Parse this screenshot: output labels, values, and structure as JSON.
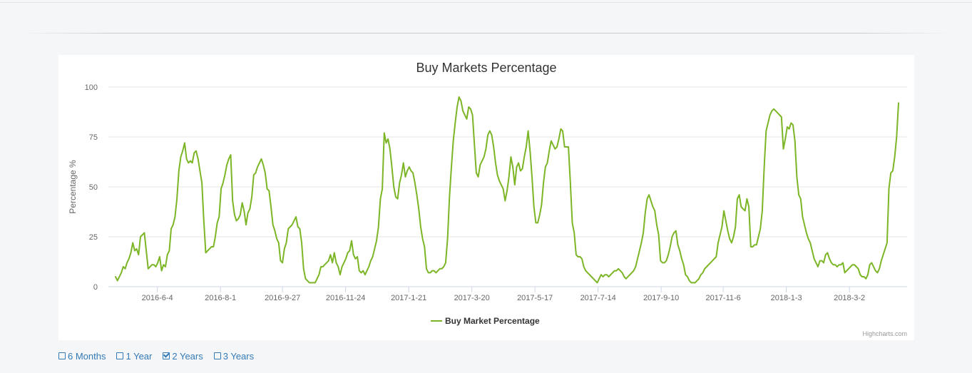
{
  "chart_data": {
    "type": "line",
    "title": "Buy Markets Percentage",
    "ylabel": "Percentage %",
    "xlabel": "",
    "ylim": [
      0,
      100
    ],
    "yticks": [
      "0",
      "25",
      "50",
      "75",
      "100"
    ],
    "xticks": [
      "2016-6-4",
      "2016-8-1",
      "2016-9-27",
      "2016-11-24",
      "2017-1-21",
      "2017-3-20",
      "2017-5-17",
      "2017-7-14",
      "2017-9-10",
      "2017-11-6",
      "2018-1-3",
      "2018-3-2"
    ],
    "x_start": "2016-4-20",
    "x_end": "2018-4-24",
    "grid": true,
    "legend_position": "bottom",
    "series": [
      {
        "name": "Buy Market Percentage",
        "color": "#7cb526",
        "values": [
          5,
          3,
          5,
          7,
          10,
          9,
          12,
          14,
          17,
          22,
          18,
          19,
          16,
          25,
          26,
          27,
          18,
          9,
          10,
          11,
          11,
          10,
          12,
          15,
          8,
          11,
          10,
          16,
          18,
          29,
          31,
          35,
          44,
          58,
          65,
          68,
          72,
          64,
          62,
          63,
          62,
          67,
          68,
          64,
          58,
          52,
          33,
          17,
          18,
          19,
          20,
          20,
          25,
          32,
          35,
          49,
          52,
          56,
          61,
          64,
          66,
          43,
          36,
          33,
          34,
          36,
          42,
          38,
          31,
          37,
          39,
          45,
          56,
          57,
          60,
          62,
          64,
          61,
          57,
          49,
          48,
          40,
          31,
          28,
          24,
          22,
          13,
          12,
          19,
          22,
          29,
          30,
          31,
          33,
          35,
          30,
          29,
          22,
          9,
          4,
          3,
          2,
          2,
          2,
          2,
          4,
          6,
          10,
          10,
          11,
          12,
          13,
          16,
          12,
          17,
          12,
          10,
          6,
          10,
          12,
          14,
          17,
          18,
          23,
          16,
          14,
          15,
          8,
          7,
          8,
          6,
          8,
          10,
          13,
          15,
          19,
          23,
          30,
          44,
          49,
          77,
          72,
          74,
          69,
          60,
          50,
          45,
          44,
          52,
          56,
          62,
          55,
          58,
          60,
          58,
          57,
          52,
          46,
          39,
          30,
          24,
          20,
          9,
          7,
          7,
          8,
          8,
          7,
          8,
          9,
          9,
          10,
          12,
          24,
          45,
          60,
          73,
          82,
          90,
          95,
          93,
          88,
          86,
          84,
          90,
          89,
          86,
          71,
          57,
          55,
          61,
          63,
          65,
          69,
          76,
          78,
          76,
          70,
          62,
          56,
          53,
          51,
          49,
          43,
          48,
          55,
          65,
          60,
          51,
          60,
          62,
          58,
          59,
          65,
          70,
          78,
          68,
          55,
          40,
          32,
          32,
          36,
          41,
          52,
          60,
          62,
          68,
          73,
          71,
          69,
          70,
          74,
          79,
          78,
          70,
          70,
          70,
          52,
          32,
          27,
          16,
          15,
          15,
          14,
          10,
          8,
          7,
          6,
          5,
          4,
          3,
          2,
          4,
          6,
          5,
          6,
          6,
          5,
          6,
          7,
          8,
          8,
          9,
          8,
          7,
          5,
          4,
          5,
          6,
          7,
          8,
          10,
          14,
          18,
          22,
          27,
          37,
          44,
          46,
          43,
          40,
          38,
          31,
          26,
          13,
          12,
          12,
          13,
          16,
          20,
          25,
          27,
          28,
          21,
          18,
          14,
          11,
          6,
          5,
          3,
          2,
          2,
          2,
          3,
          4,
          6,
          7,
          9,
          10,
          11,
          12,
          13,
          14,
          15,
          22,
          26,
          30,
          38,
          33,
          28,
          24,
          22,
          25,
          30,
          44,
          46,
          40,
          39,
          38,
          44,
          40,
          20,
          20,
          21,
          21,
          25,
          29,
          38,
          60,
          78,
          82,
          86,
          88,
          89,
          88,
          87,
          86,
          85,
          69,
          74,
          80,
          79,
          82,
          81,
          73,
          55,
          46,
          44,
          35,
          31,
          27,
          24,
          22,
          18,
          14,
          12,
          10,
          13,
          13,
          12,
          16,
          17,
          14,
          12,
          11,
          11,
          10,
          11,
          11,
          12,
          7,
          8,
          9,
          10,
          11,
          11,
          10,
          9,
          6,
          5,
          5,
          4,
          6,
          11,
          12,
          10,
          8,
          7,
          9,
          13,
          16,
          19,
          22,
          49,
          57,
          58,
          65,
          75,
          92
        ]
      }
    ]
  },
  "credits": "Highcharts.com",
  "range_options": [
    {
      "label": "6 Months",
      "checked": false
    },
    {
      "label": "1 Year",
      "checked": false
    },
    {
      "label": "2 Years",
      "checked": true
    },
    {
      "label": "3 Years",
      "checked": false
    }
  ]
}
